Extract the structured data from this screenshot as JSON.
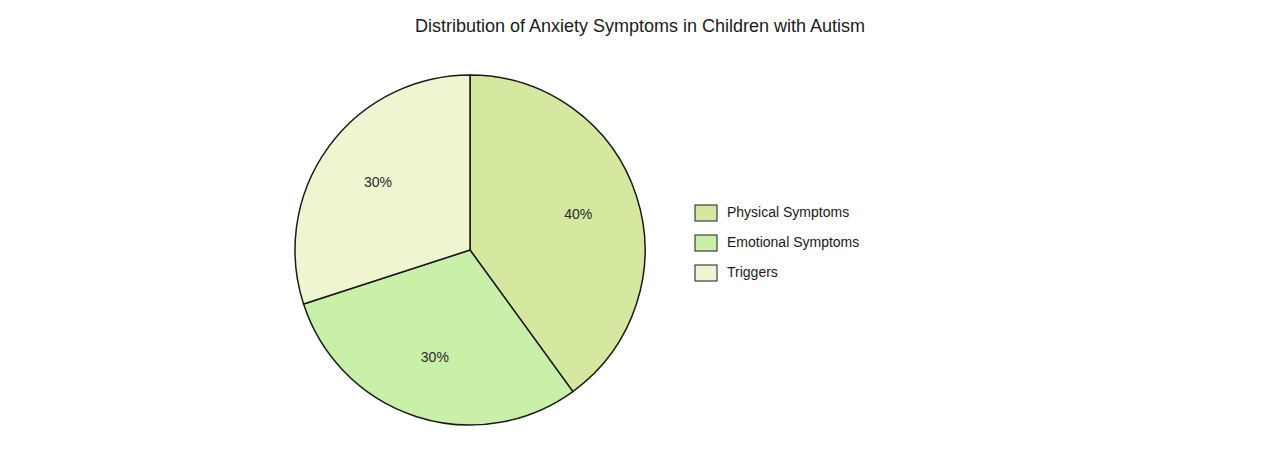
{
  "chart_data": {
    "type": "pie",
    "title": "Distribution of Anxiety Symptoms in Children with Autism",
    "categories": [
      "Physical Symptoms",
      "Emotional Symptoms",
      "Triggers"
    ],
    "values": [
      40,
      30,
      30
    ],
    "value_labels": [
      "40%",
      "30%",
      "30%"
    ],
    "colors": [
      "#d4e8a0",
      "#c8f0a8",
      "#eef5d0"
    ],
    "data_labels": true,
    "legend": "right"
  }
}
